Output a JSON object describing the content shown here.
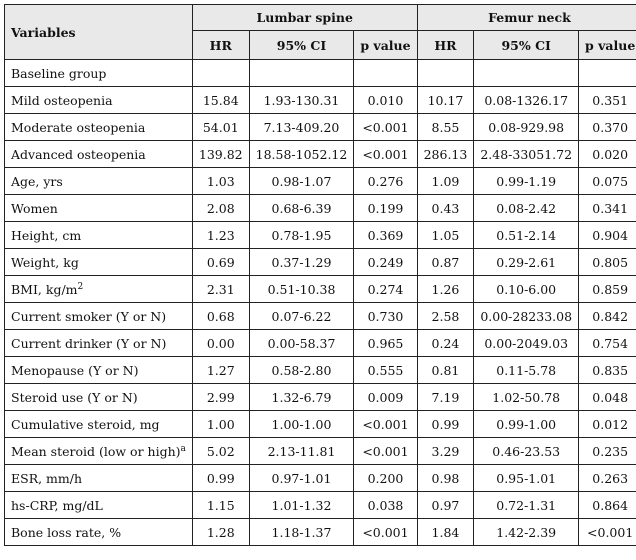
{
  "table": {
    "header": {
      "variables_label": "Variables",
      "group_lumbar": "Lumbar spine",
      "group_femur": "Femur neck",
      "col_hr": "HR",
      "col_ci": "95% CI",
      "col_p": "p value"
    },
    "rows": [
      {
        "label": "Baseline group",
        "sup": "",
        "l_hr": "",
        "l_ci": "",
        "l_p": "",
        "f_hr": "",
        "f_ci": "",
        "f_p": ""
      },
      {
        "label": "Mild osteopenia",
        "sup": "",
        "l_hr": "15.84",
        "l_ci": "1.93-130.31",
        "l_p": "0.010",
        "f_hr": "10.17",
        "f_ci": "0.08-1326.17",
        "f_p": "0.351"
      },
      {
        "label": "Moderate osteopenia",
        "sup": "",
        "l_hr": "54.01",
        "l_ci": "7.13-409.20",
        "l_p": "<0.001",
        "f_hr": "8.55",
        "f_ci": "0.08-929.98",
        "f_p": "0.370"
      },
      {
        "label": "Advanced osteopenia",
        "sup": "",
        "l_hr": "139.82",
        "l_ci": "18.58-1052.12",
        "l_p": "<0.001",
        "f_hr": "286.13",
        "f_ci": "2.48-33051.72",
        "f_p": "0.020"
      },
      {
        "label": "Age, yrs",
        "sup": "",
        "l_hr": "1.03",
        "l_ci": "0.98-1.07",
        "l_p": "0.276",
        "f_hr": "1.09",
        "f_ci": "0.99-1.19",
        "f_p": "0.075"
      },
      {
        "label": "Women",
        "sup": "",
        "l_hr": "2.08",
        "l_ci": "0.68-6.39",
        "l_p": "0.199",
        "f_hr": "0.43",
        "f_ci": "0.08-2.42",
        "f_p": "0.341"
      },
      {
        "label": "Height, cm",
        "sup": "",
        "l_hr": "1.23",
        "l_ci": "0.78-1.95",
        "l_p": "0.369",
        "f_hr": "1.05",
        "f_ci": "0.51-2.14",
        "f_p": "0.904"
      },
      {
        "label": "Weight, kg",
        "sup": "",
        "l_hr": "0.69",
        "l_ci": "0.37-1.29",
        "l_p": "0.249",
        "f_hr": "0.87",
        "f_ci": "0.29-2.61",
        "f_p": "0.805"
      },
      {
        "label": "BMI, kg/m",
        "sup": "2",
        "l_hr": "2.31",
        "l_ci": "0.51-10.38",
        "l_p": "0.274",
        "f_hr": "1.26",
        "f_ci": "0.10-6.00",
        "f_p": "0.859"
      },
      {
        "label": "Current smoker (Y or N)",
        "sup": "",
        "l_hr": "0.68",
        "l_ci": "0.07-6.22",
        "l_p": "0.730",
        "f_hr": "2.58",
        "f_ci": "0.00-28233.08",
        "f_p": "0.842"
      },
      {
        "label": "Current drinker (Y or N)",
        "sup": "",
        "l_hr": "0.00",
        "l_ci": "0.00-58.37",
        "l_p": "0.965",
        "f_hr": "0.24",
        "f_ci": "0.00-2049.03",
        "f_p": "0.754"
      },
      {
        "label": "Menopause (Y or N)",
        "sup": "",
        "l_hr": "1.27",
        "l_ci": "0.58-2.80",
        "l_p": "0.555",
        "f_hr": "0.81",
        "f_ci": "0.11-5.78",
        "f_p": "0.835"
      },
      {
        "label": "Steroid use (Y or N)",
        "sup": "",
        "l_hr": "2.99",
        "l_ci": "1.32-6.79",
        "l_p": "0.009",
        "f_hr": "7.19",
        "f_ci": "1.02-50.78",
        "f_p": "0.048"
      },
      {
        "label": "Cumulative steroid, mg",
        "sup": "",
        "l_hr": "1.00",
        "l_ci": "1.00-1.00",
        "l_p": "<0.001",
        "f_hr": "0.99",
        "f_ci": "0.99-1.00",
        "f_p": "0.012"
      },
      {
        "label": "Mean steroid (low or high)",
        "sup": "a",
        "l_hr": "5.02",
        "l_ci": "2.13-11.81",
        "l_p": "<0.001",
        "f_hr": "3.29",
        "f_ci": "0.46-23.53",
        "f_p": "0.235"
      },
      {
        "label": "ESR, mm/h",
        "sup": "",
        "l_hr": "0.99",
        "l_ci": "0.97-1.01",
        "l_p": "0.200",
        "f_hr": "0.98",
        "f_ci": "0.95-1.01",
        "f_p": "0.263"
      },
      {
        "label": "hs-CRP, mg/dL",
        "sup": "",
        "l_hr": "1.15",
        "l_ci": "1.01-1.32",
        "l_p": "0.038",
        "f_hr": "0.97",
        "f_ci": "0.72-1.31",
        "f_p": "0.864"
      },
      {
        "label": "Bone loss rate, %",
        "sup": "",
        "l_hr": "1.28",
        "l_ci": "1.18-1.37",
        "l_p": "<0.001",
        "f_hr": "1.84",
        "f_ci": "1.42-2.39",
        "f_p": "<0.001"
      }
    ]
  }
}
